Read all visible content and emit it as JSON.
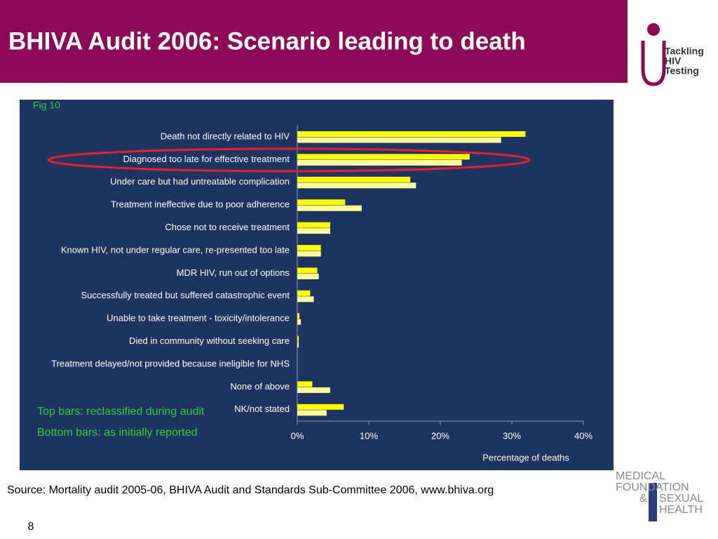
{
  "header": {
    "title": "BHIVA Audit 2006: Scenario leading to death"
  },
  "logo_top": {
    "lines": [
      "Tackling",
      "HIV",
      "Testing"
    ]
  },
  "chart_data": {
    "type": "hbar",
    "figure_label": "Fig 10",
    "categories": [
      "Death not directly related to HIV",
      "Diagnosed too late for effective treatment",
      "Under care but had untreatable complication",
      "Treatment ineffective due to poor adherence",
      "Chose not to receive treatment",
      "Known HIV, not under regular care, re-presented too late",
      "MDR HIV, run out of options",
      "Successfully treated but suffered catastrophic event",
      "Unable to take treatment - toxicity/intolerance",
      "Died in community without seeking care",
      "Treatment delayed/not provided because ineligible for NHS",
      "None of above",
      "NK/not stated"
    ],
    "series": [
      {
        "name": "Top bars: reclassified during audit",
        "color": "#ffff00",
        "values": [
          31.9,
          24.1,
          15.8,
          6.7,
          4.6,
          3.3,
          2.8,
          1.8,
          0.3,
          0.2,
          0,
          2.1,
          6.5
        ]
      },
      {
        "name": "Bottom bars: as initially reported",
        "color": "#ffff99",
        "values": [
          28.5,
          23.0,
          16.6,
          9.0,
          4.6,
          3.3,
          3.0,
          2.3,
          0.5,
          0.2,
          0,
          4.6,
          4.1
        ]
      }
    ],
    "xlim": [
      0,
      40
    ],
    "xticks": [
      {
        "value": 0,
        "label": "0%"
      },
      {
        "value": 10,
        "label": "10%"
      },
      {
        "value": 20,
        "label": "20%"
      },
      {
        "value": 30,
        "label": "30%"
      },
      {
        "value": 40,
        "label": "40%"
      }
    ],
    "xlabel": "Percentage of deaths",
    "highlight_color": "#e8202a"
  },
  "source": "Source: Mortality audit 2005-06, BHIVA Audit and Standards Sub-Committee 2006, www.bhiva.org",
  "logo_bottom": {
    "lines": [
      "MEDICAL",
      "FOUNDATION",
      "&",
      "SEXUAL",
      "HEALTH"
    ]
  },
  "page_number": "8"
}
